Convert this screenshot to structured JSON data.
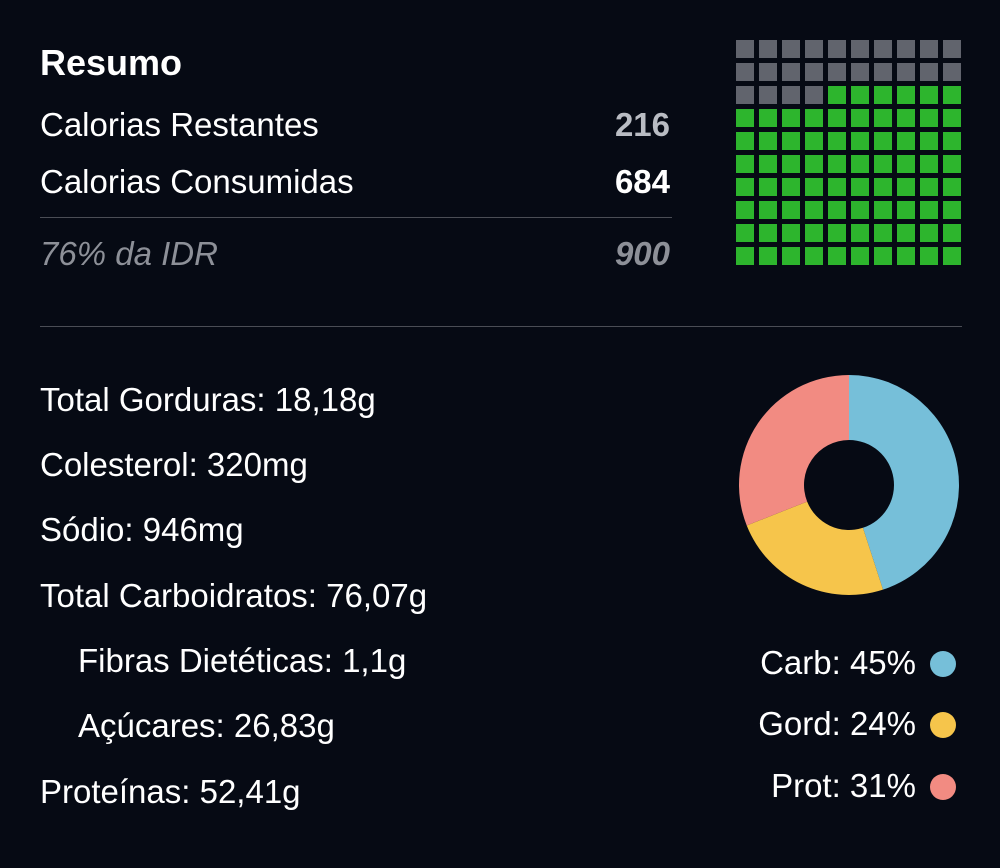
{
  "summary": {
    "title": "Resumo",
    "remaining_label": "Calorias Restantes",
    "remaining_value": "216",
    "consumed_label": "Calorias Consumidas",
    "consumed_value": "684",
    "rdi_label": "76% da IDR",
    "rdi_value": "900"
  },
  "waffle": {
    "cells_total": 100,
    "cells_filled": 76,
    "filled_color": "#2db52d",
    "empty_color": "#61646d"
  },
  "nutrients": [
    {
      "label": "Total Gorduras: 18,18g"
    },
    {
      "label": "Colesterol: 320mg"
    },
    {
      "label": "Sódio: 946mg"
    },
    {
      "label": "Total Carboidratos: 76,07g"
    },
    {
      "label": "Fibras Dietéticas: 1,1g"
    },
    {
      "label": "Açúcares: 26,83g"
    },
    {
      "label": "Proteínas: 52,41g"
    }
  ],
  "macros": [
    {
      "label": "Carb: 45%",
      "value": 45,
      "color": "#76bfd9"
    },
    {
      "label": "Gord: 24%",
      "value": 24,
      "color": "#f6c54b"
    },
    {
      "label": "Prot: 31%",
      "value": 31,
      "color": "#f28b82"
    }
  ]
}
